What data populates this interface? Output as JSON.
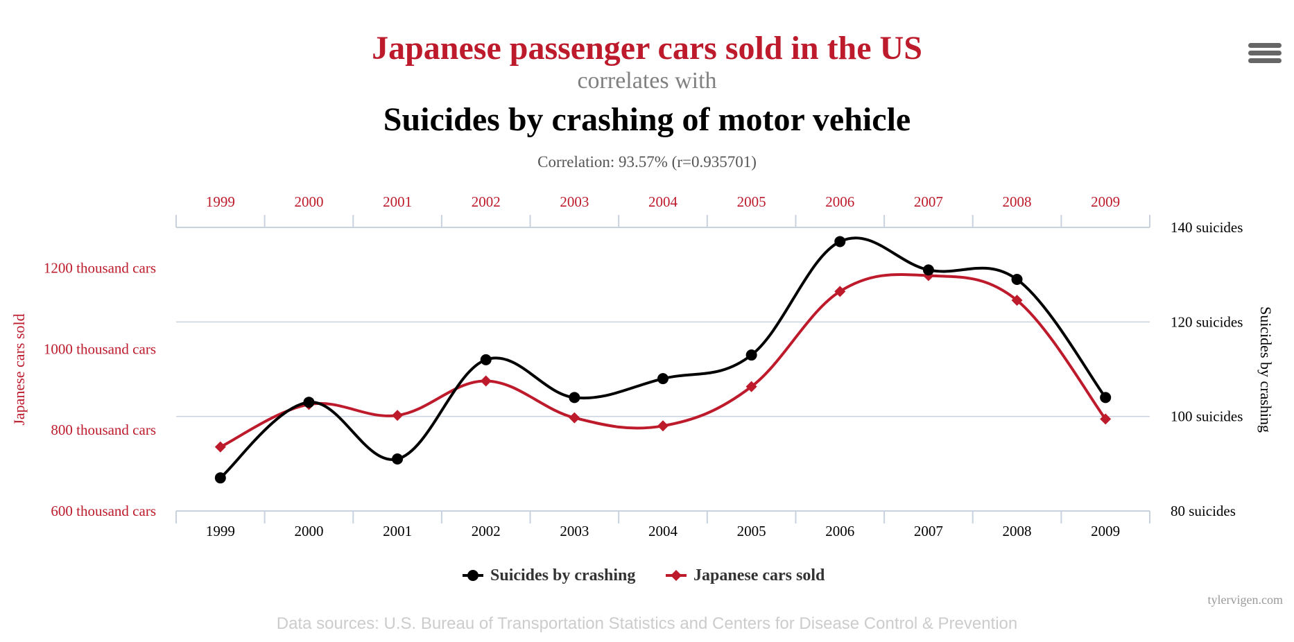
{
  "titles": {
    "main": "Japanese passenger cars sold in the US",
    "connector": "correlates with",
    "sub": "Suicides by crashing of motor vehicle",
    "correlation": "Correlation: 93.57% (r=0.935701)"
  },
  "menu_icon": "hamburger-menu-icon",
  "colors": {
    "red": "#bd1a2b",
    "black": "#000000",
    "grid": "#c8d2de"
  },
  "chart_data": {
    "type": "line",
    "categories": [
      "1999",
      "2000",
      "2001",
      "2002",
      "2003",
      "2004",
      "2005",
      "2006",
      "2007",
      "2008",
      "2009"
    ],
    "series": [
      {
        "name": "Suicides by crashing",
        "axis": "right",
        "color": "#000000",
        "marker": "circle",
        "values": [
          87,
          103,
          91,
          112,
          104,
          108,
          113,
          137,
          131,
          129,
          104
        ]
      },
      {
        "name": "Japanese cars sold",
        "axis": "left",
        "color": "#bd1a2b",
        "marker": "diamond",
        "values": [
          758,
          863,
          836,
          921,
          830,
          810,
          907,
          1142,
          1181,
          1120,
          827
        ]
      }
    ],
    "y_left": {
      "label": "Japanese cars sold",
      "min": 600,
      "max": 1300,
      "ticks": [
        {
          "value": 600,
          "label": "600 thousand cars"
        },
        {
          "value": 800,
          "label": "800 thousand cars"
        },
        {
          "value": 1000,
          "label": "1000 thousand cars"
        },
        {
          "value": 1200,
          "label": "1200 thousand cars"
        }
      ]
    },
    "y_right": {
      "label": "Suicides by crashing",
      "min": 80,
      "max": 140,
      "ticks": [
        {
          "value": 80,
          "label": "80 suicides"
        },
        {
          "value": 100,
          "label": "100 suicides"
        },
        {
          "value": 120,
          "label": "120 suicides"
        },
        {
          "value": 140,
          "label": "140 suicides"
        }
      ]
    },
    "legend": [
      "Suicides by crashing",
      "Japanese cars sold"
    ],
    "legend_position": "bottom-center"
  },
  "credit": "tylervigen.com",
  "sources": "Data sources: U.S. Bureau of Transportation Statistics and Centers for Disease Control & Prevention"
}
